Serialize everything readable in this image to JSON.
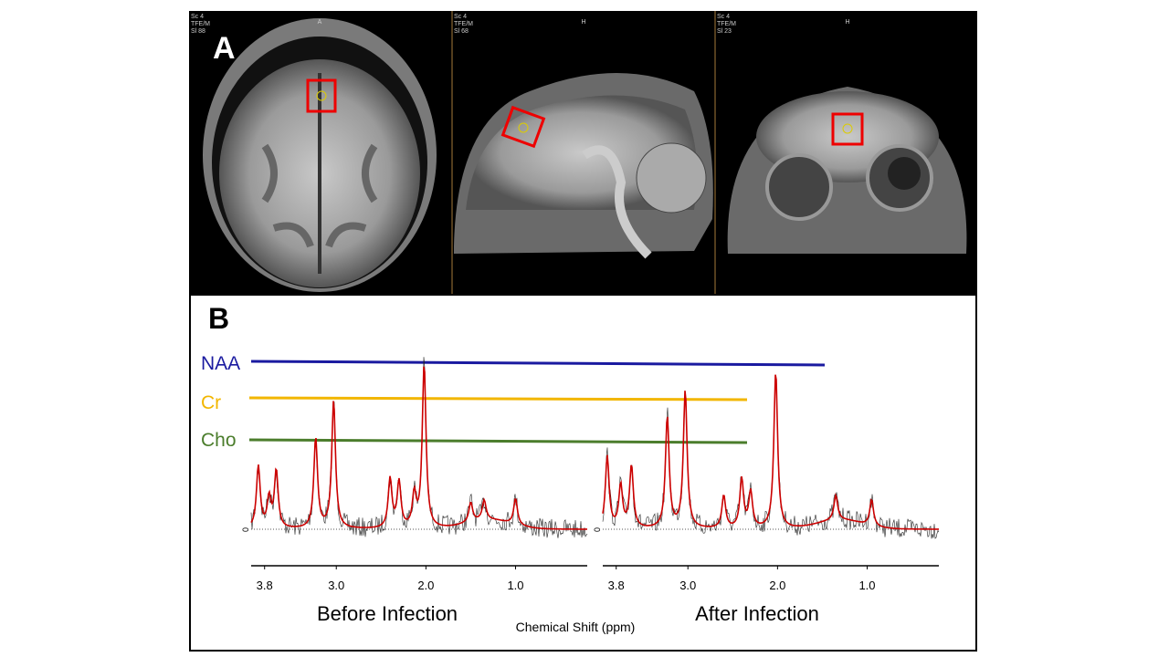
{
  "figure": {
    "panel_a": {
      "label": "A",
      "views": [
        {
          "info": [
            "Sc 4",
            "TFE/M",
            "Sl 88"
          ],
          "orientation": "A"
        },
        {
          "info": [
            "Sc 4",
            "TFE/M",
            "Sl 68"
          ],
          "orientation": "H"
        },
        {
          "info": [
            "Sc 4",
            "TFE/M",
            "Sl 23"
          ],
          "orientation": "H"
        }
      ]
    },
    "panel_b": {
      "label": "B",
      "x_label": "Chemical Shift (ppm)",
      "metabolites": [
        {
          "name": "NAA",
          "color": "#1a1aa0"
        },
        {
          "name": "Cr",
          "color": "#f2b600"
        },
        {
          "name": "Cho",
          "color": "#4b7d2c"
        }
      ],
      "spectra": [
        {
          "title": "Before Infection",
          "zero_label": "0",
          "xlim": [
            3.95,
            0.2
          ],
          "xticks": [
            {
              "value": 3.8,
              "label": "3.8"
            },
            {
              "value": 3.0,
              "label": "3.0"
            },
            {
              "value": 2.0,
              "label": "2.0"
            },
            {
              "value": 1.0,
              "label": "1.0"
            }
          ],
          "peaks": [
            {
              "ppm": 3.87,
              "height": 38
            },
            {
              "ppm": 3.75,
              "height": 18
            },
            {
              "ppm": 3.67,
              "height": 35
            },
            {
              "ppm": 3.23,
              "height": 55
            },
            {
              "ppm": 3.03,
              "height": 78
            },
            {
              "ppm": 2.4,
              "height": 30
            },
            {
              "ppm": 2.3,
              "height": 28
            },
            {
              "ppm": 2.13,
              "height": 20
            },
            {
              "ppm": 2.02,
              "height": 100
            },
            {
              "ppm": 1.5,
              "height": 12
            },
            {
              "ppm": 1.35,
              "height": 12
            },
            {
              "ppm": 1.0,
              "height": 16
            }
          ]
        },
        {
          "title": "After Infection",
          "zero_label": "0",
          "xlim": [
            3.95,
            0.2
          ],
          "xticks": [
            {
              "value": 3.8,
              "label": "3.8"
            },
            {
              "value": 3.0,
              "label": "3.0"
            },
            {
              "value": 2.0,
              "label": "2.0"
            },
            {
              "value": 1.0,
              "label": "1.0"
            }
          ],
          "peaks": [
            {
              "ppm": 3.9,
              "height": 44
            },
            {
              "ppm": 3.75,
              "height": 26
            },
            {
              "ppm": 3.63,
              "height": 38
            },
            {
              "ppm": 3.23,
              "height": 68
            },
            {
              "ppm": 3.03,
              "height": 84
            },
            {
              "ppm": 2.6,
              "height": 20
            },
            {
              "ppm": 2.4,
              "height": 30
            },
            {
              "ppm": 2.3,
              "height": 22
            },
            {
              "ppm": 2.02,
              "height": 96
            },
            {
              "ppm": 1.35,
              "height": 15
            },
            {
              "ppm": 0.95,
              "height": 16
            }
          ]
        }
      ]
    }
  }
}
